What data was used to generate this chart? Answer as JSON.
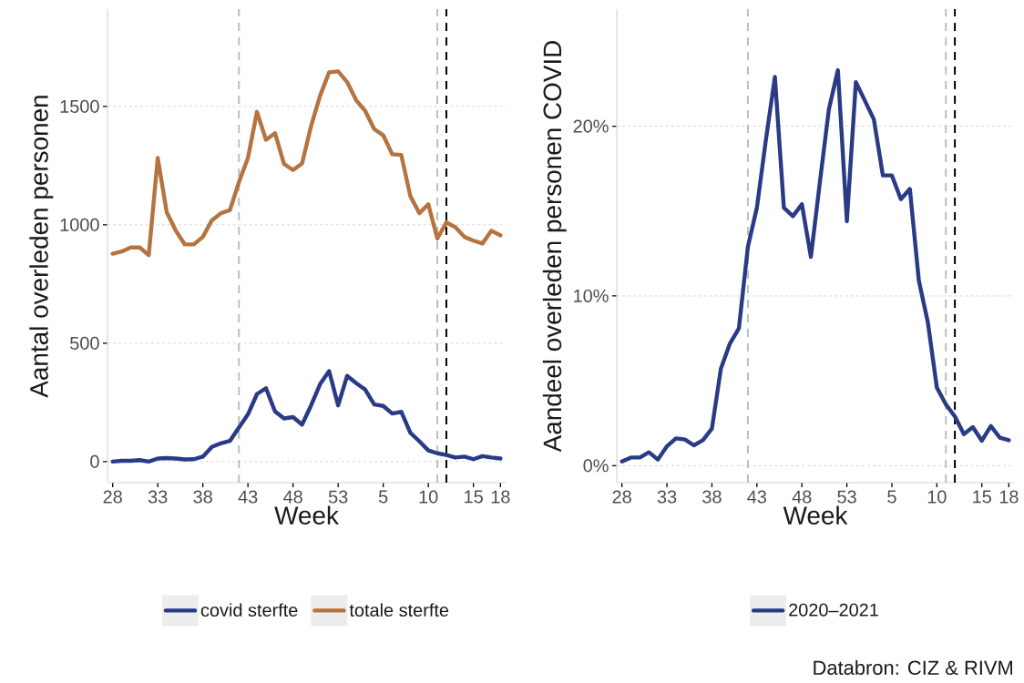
{
  "chart_data": [
    {
      "type": "line",
      "xlabel": "Week",
      "ylabel": "Aantal overleden personen",
      "xlim": [
        "2020-07-02",
        "2021-05-07"
      ],
      "ylim": [
        -89,
        1911
      ],
      "xticks": [
        {
          "value": "2020-07-06",
          "label": "28"
        },
        {
          "value": "2020-08-10",
          "label": "33"
        },
        {
          "value": "2020-09-14",
          "label": "38"
        },
        {
          "value": "2020-10-19",
          "label": "43"
        },
        {
          "value": "2020-11-23",
          "label": "48"
        },
        {
          "value": "2020-12-28",
          "label": "53"
        },
        {
          "value": "2021-02-01",
          "label": "5"
        },
        {
          "value": "2021-03-08",
          "label": "10"
        },
        {
          "value": "2021-04-12",
          "label": "15"
        },
        {
          "value": "2021-05-03",
          "label": "18"
        }
      ],
      "yticks": [
        0,
        500,
        1000,
        1500
      ],
      "grid": "y",
      "legend": "bottom",
      "line_style": "solid",
      "x": [
        "2020-07-06",
        "2020-07-13",
        "2020-07-20",
        "2020-07-27",
        "2020-08-03",
        "2020-08-10",
        "2020-08-17",
        "2020-08-24",
        "2020-08-31",
        "2020-09-07",
        "2020-09-14",
        "2020-09-21",
        "2020-09-28",
        "2020-10-05",
        "2020-10-12",
        "2020-10-19",
        "2020-10-26",
        "2020-11-02",
        "2020-11-09",
        "2020-11-16",
        "2020-11-23",
        "2020-11-30",
        "2020-12-07",
        "2020-12-14",
        "2020-12-21",
        "2020-12-28",
        "2021-01-04",
        "2021-01-11",
        "2021-01-18",
        "2021-01-25",
        "2021-02-01",
        "2021-02-08",
        "2021-02-15",
        "2021-02-22",
        "2021-03-01",
        "2021-03-08",
        "2021-03-15",
        "2021-03-22",
        "2021-03-29",
        "2021-04-05",
        "2021-04-12",
        "2021-04-19",
        "2021-04-26",
        "2021-05-03"
      ],
      "series": [
        {
          "name": "covid sterfte",
          "color": "#2b3a85",
          "values": [
            0,
            3,
            3,
            6,
            0,
            13,
            15,
            13,
            9,
            10,
            21,
            62,
            77,
            87,
            144,
            199,
            285,
            310,
            212,
            182,
            188,
            156,
            237,
            327,
            382,
            237,
            362,
            331,
            304,
            241,
            235,
            203,
            210,
            122,
            86,
            47,
            35,
            28,
            17,
            21,
            10,
            23,
            17,
            13
          ]
        },
        {
          "name": "totale sterfte",
          "color": "#b5743f",
          "values": [
            878,
            887,
            904,
            904,
            872,
            1282,
            1052,
            975,
            917,
            917,
            949,
            1019,
            1049,
            1062,
            1180,
            1282,
            1477,
            1359,
            1387,
            1257,
            1231,
            1259,
            1417,
            1545,
            1644,
            1648,
            1603,
            1526,
            1481,
            1404,
            1378,
            1298,
            1295,
            1122,
            1049,
            1087,
            942,
            1010,
            990,
            949,
            933,
            921,
            975,
            955
          ]
        }
      ],
      "ref_lines": [
        {
          "axis": "x",
          "value": "2020-10-12",
          "color": "#bebebe",
          "line_style": "dashed"
        },
        {
          "axis": "x",
          "value": "2021-03-15",
          "color": "#bebebe",
          "line_style": "dashed"
        },
        {
          "axis": "x",
          "value": "2021-03-22",
          "color": "#000000",
          "line_style": "dashed"
        }
      ]
    },
    {
      "type": "line",
      "xlabel": "Week",
      "ylabel": "Aandeel overleden personen COVID",
      "xlim": [
        "2020-07-02",
        "2021-05-07"
      ],
      "ylim": [
        -1.0,
        26.9
      ],
      "xticks": [
        {
          "value": "2020-07-06",
          "label": "28"
        },
        {
          "value": "2020-08-10",
          "label": "33"
        },
        {
          "value": "2020-09-14",
          "label": "38"
        },
        {
          "value": "2020-10-19",
          "label": "43"
        },
        {
          "value": "2020-11-23",
          "label": "48"
        },
        {
          "value": "2020-12-28",
          "label": "53"
        },
        {
          "value": "2021-02-01",
          "label": "5"
        },
        {
          "value": "2021-03-08",
          "label": "10"
        },
        {
          "value": "2021-04-12",
          "label": "15"
        },
        {
          "value": "2021-05-03",
          "label": "18"
        }
      ],
      "yticks": [
        {
          "value": 0,
          "label": "0%"
        },
        {
          "value": 10,
          "label": "10%"
        },
        {
          "value": 20,
          "label": "20%"
        }
      ],
      "grid": "y",
      "legend": "bottom",
      "line_style": "solid",
      "x": [
        "2020-07-06",
        "2020-07-13",
        "2020-07-20",
        "2020-07-27",
        "2020-08-03",
        "2020-08-10",
        "2020-08-17",
        "2020-08-24",
        "2020-08-31",
        "2020-09-07",
        "2020-09-14",
        "2020-09-21",
        "2020-09-28",
        "2020-10-05",
        "2020-10-12",
        "2020-10-19",
        "2020-10-26",
        "2020-11-02",
        "2020-11-09",
        "2020-11-16",
        "2020-11-23",
        "2020-11-30",
        "2020-12-07",
        "2020-12-14",
        "2020-12-21",
        "2020-12-28",
        "2021-01-04",
        "2021-01-11",
        "2021-01-18",
        "2021-01-25",
        "2021-02-01",
        "2021-02-08",
        "2021-02-15",
        "2021-02-22",
        "2021-03-01",
        "2021-03-08",
        "2021-03-15",
        "2021-03-22",
        "2021-03-29",
        "2021-04-05",
        "2021-04-12",
        "2021-04-19",
        "2021-04-26",
        "2021-05-03"
      ],
      "series": [
        {
          "name": "2020–2021",
          "color": "#2b3a85",
          "values": [
            0.25,
            0.48,
            0.48,
            0.79,
            0.36,
            1.14,
            1.61,
            1.54,
            1.2,
            1.5,
            2.18,
            5.72,
            7.19,
            8.09,
            12.9,
            15.2,
            19.2,
            22.9,
            15.2,
            14.7,
            15.4,
            12.3,
            16.7,
            21.0,
            23.3,
            14.4,
            22.6,
            21.5,
            20.4,
            17.1,
            17.1,
            15.7,
            16.3,
            10.9,
            8.44,
            4.6,
            3.61,
            2.9,
            1.86,
            2.27,
            1.47,
            2.33,
            1.65,
            1.5
          ]
        }
      ],
      "ref_lines": [
        {
          "axis": "x",
          "value": "2020-10-12",
          "color": "#bebebe",
          "line_style": "dashed"
        },
        {
          "axis": "x",
          "value": "2021-03-15",
          "color": "#bebebe",
          "line_style": "dashed"
        },
        {
          "axis": "x",
          "value": "2021-03-22",
          "color": "#000000",
          "line_style": "dashed"
        }
      ],
      "annotations": [
        "Databron: CIZ & RIVM"
      ]
    }
  ]
}
